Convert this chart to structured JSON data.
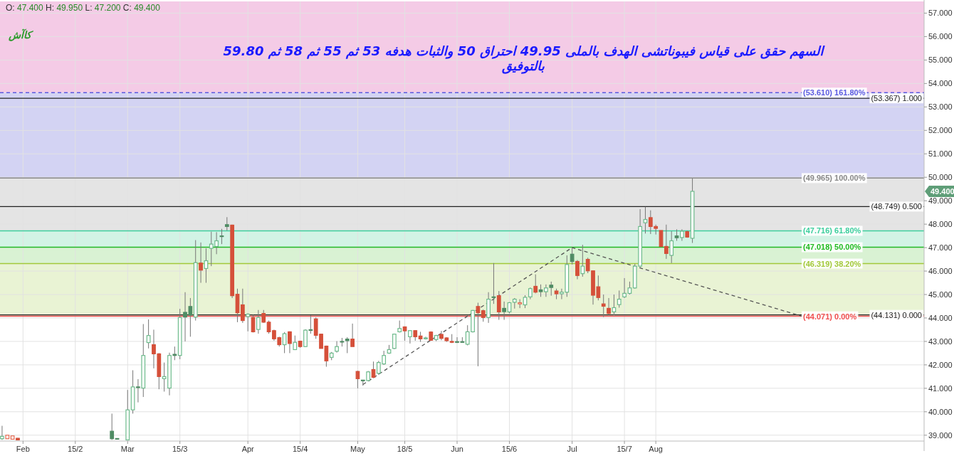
{
  "chart_data": {
    "type": "candlestick",
    "title": "O: 47.400  H: 49.950  L: 47.200  C: 49.400",
    "categories": [
      null,
      null,
      null,
      null,
      "Feb",
      null,
      null,
      null,
      null,
      null,
      null,
      null,
      null,
      null,
      "15/2",
      null,
      null,
      null,
      null,
      null,
      null,
      null,
      null,
      null,
      "Mar",
      null,
      null,
      null,
      null,
      null,
      null,
      null,
      null,
      null,
      "15/3",
      null,
      null,
      null,
      null,
      null,
      null,
      null,
      null,
      null,
      null,
      null,
      null,
      "Apr",
      null,
      null,
      null,
      null,
      null,
      null,
      null,
      null,
      null,
      "15/4",
      null,
      null,
      null,
      null,
      null,
      null,
      null,
      null,
      null,
      null,
      "May",
      null,
      null,
      null,
      null,
      null,
      null,
      null,
      null,
      "18/5",
      null,
      null,
      null,
      null,
      null,
      null,
      null,
      null,
      null,
      "Jun",
      null,
      null,
      null,
      null,
      null,
      null,
      null,
      null,
      null,
      "15/6",
      null,
      null,
      null,
      null,
      null,
      null,
      null,
      null,
      null,
      null,
      null,
      "Jul",
      null,
      null,
      null,
      null,
      null,
      null,
      null,
      null,
      null,
      "15/7",
      null,
      null,
      null,
      null,
      null,
      "Aug",
      null,
      null,
      null,
      null,
      null,
      null,
      null,
      null,
      null,
      null,
      null,
      null,
      null,
      null,
      null,
      null,
      null,
      null,
      null,
      null,
      null,
      null,
      null,
      null,
      null,
      null,
      null,
      null,
      null,
      null,
      null,
      null,
      null,
      null,
      null,
      null,
      null,
      null,
      null,
      null,
      null,
      null,
      null,
      null,
      null,
      null,
      null,
      null,
      null,
      null,
      null
    ],
    "ohlc": [
      [
        38.85,
        39.4,
        38.8,
        38.95
      ],
      [
        38.85,
        39.0,
        38.85,
        39.0
      ],
      [
        38.83,
        38.97,
        38.83,
        38.97
      ],
      [
        38.87,
        38.88,
        38.78,
        38.8
      ],
      null,
      null,
      null,
      null,
      null,
      null,
      null,
      null,
      null,
      null,
      null,
      null,
      null,
      null,
      null,
      null,
      null,
      [
        39.17,
        39.92,
        38.8,
        38.85
      ],
      [
        38.86,
        38.86,
        38.85,
        38.85
      ],
      null,
      [
        38.8,
        40.93,
        38.78,
        40.08
      ],
      [
        40.08,
        41.77,
        39.92,
        41.06
      ],
      [
        41.06,
        41.39,
        40.4,
        41.05
      ],
      [
        41.01,
        43.74,
        40.63,
        42.4
      ],
      [
        42.95,
        43.94,
        42.7,
        43.25
      ],
      [
        42.86,
        43.5,
        41.85,
        42.47
      ],
      [
        42.47,
        42.5,
        40.96,
        41.5
      ],
      [
        41.41,
        42.1,
        40.86,
        41.5
      ],
      [
        41.01,
        42.52,
        40.7,
        42.4
      ],
      [
        42.45,
        42.78,
        42.2,
        42.4
      ],
      [
        42.4,
        44.39,
        42.24,
        44.02
      ],
      [
        44.24,
        45.1,
        43.0,
        44.04
      ],
      [
        44.49,
        44.85,
        43.2,
        44.12
      ],
      [
        44.04,
        47.32,
        43.89,
        46.36
      ],
      [
        46.34,
        47.22,
        45.5,
        46.04
      ],
      [
        46.11,
        46.97,
        45.5,
        46.44
      ],
      [
        46.97,
        47.68,
        46.21,
        47.15
      ],
      [
        47.05,
        47.66,
        46.72,
        47.29
      ],
      [
        47.5,
        47.8,
        47.15,
        47.5
      ],
      [
        47.98,
        48.3,
        47.73,
        47.9
      ],
      [
        47.96,
        47.98,
        44.85,
        44.95
      ],
      [
        45.01,
        45.25,
        43.82,
        44.22
      ],
      [
        44.56,
        45.25,
        43.79,
        43.89
      ],
      [
        44.06,
        44.2,
        43.43,
        44.16
      ],
      [
        44.02,
        44.14,
        43.38,
        43.41
      ],
      [
        43.51,
        44.34,
        43.33,
        44.02
      ],
      [
        44.19,
        44.34,
        43.79,
        43.82
      ],
      [
        43.82,
        43.89,
        43.33,
        43.41
      ],
      [
        43.46,
        43.5,
        43.03,
        43.11
      ],
      [
        43.16,
        43.2,
        42.78,
        42.86
      ],
      [
        42.86,
        43.4,
        42.5,
        43.33
      ],
      [
        43.41,
        43.43,
        42.5,
        42.91
      ],
      [
        42.65,
        43.25,
        42.65,
        42.96
      ],
      [
        43.01,
        43.03,
        42.73,
        42.78
      ],
      [
        42.78,
        43.52,
        42.76,
        43.48
      ],
      [
        43.5,
        44.12,
        43.33,
        43.5
      ],
      [
        43.96,
        44.02,
        43.11,
        43.26
      ],
      [
        43.31,
        43.33,
        42.7,
        42.7
      ],
      [
        42.8,
        42.82,
        41.92,
        42.17
      ],
      [
        42.32,
        42.55,
        42.2,
        42.5
      ],
      [
        42.58,
        43.01,
        42.52,
        42.78
      ],
      [
        43.0,
        43.15,
        42.78,
        43.0
      ],
      [
        43.1,
        43.18,
        42.5,
        43.03
      ],
      [
        43.1,
        43.76,
        42.78,
        42.78
      ],
      [
        41.72,
        41.75,
        41.0,
        41.41
      ],
      [
        41.35,
        41.35,
        41.11,
        41.33
      ],
      [
        41.33,
        41.74,
        41.31,
        41.7
      ],
      [
        41.8,
        42.14,
        41.43,
        41.47
      ],
      [
        41.64,
        42.17,
        41.57,
        42.1
      ],
      [
        42.04,
        42.6,
        42.0,
        42.4
      ],
      [
        42.5,
        42.85,
        42.47,
        42.65
      ],
      [
        42.7,
        43.33,
        42.67,
        43.31
      ],
      [
        43.41,
        43.89,
        43.38,
        43.55
      ],
      [
        43.62,
        43.64,
        43.03,
        43.45
      ],
      [
        43.2,
        43.48,
        42.91,
        43.46
      ],
      [
        43.46,
        43.48,
        43.03,
        43.2
      ],
      [
        43.23,
        43.41,
        42.98,
        43.11
      ],
      [
        43.11,
        43.2,
        43.08,
        43.15
      ],
      [
        43.4,
        43.43,
        43.03,
        43.05
      ],
      [
        43.08,
        43.28,
        43.01,
        43.25
      ],
      [
        43.3,
        43.45,
        43.05,
        43.13
      ],
      [
        43.15,
        43.18,
        42.98,
        43.03
      ],
      [
        43.0,
        43.31,
        42.93,
        42.96
      ],
      [
        42.99,
        43.18,
        42.93,
        42.98
      ],
      [
        42.99,
        43.18,
        42.95,
        42.98
      ],
      [
        42.88,
        43.69,
        42.83,
        43.41
      ],
      [
        43.41,
        44.34,
        43.38,
        44.32
      ],
      [
        44.49,
        44.65,
        41.94,
        44.22
      ],
      [
        44.31,
        44.36,
        43.84,
        44.02
      ],
      [
        44.02,
        45.1,
        43.79,
        44.8
      ],
      [
        44.9,
        46.34,
        44.6,
        44.87
      ],
      [
        44.95,
        45.15,
        43.92,
        44.26
      ],
      [
        44.41,
        44.7,
        43.92,
        44.27
      ],
      [
        44.26,
        44.68,
        44.19,
        44.65
      ],
      [
        44.67,
        44.85,
        44.4,
        44.8
      ],
      [
        44.6,
        44.8,
        44.42,
        44.65
      ],
      [
        44.56,
        44.97,
        44.42,
        44.88
      ],
      [
        44.9,
        45.3,
        44.8,
        45.25
      ],
      [
        45.35,
        45.86,
        45.05,
        45.1
      ],
      [
        45.2,
        45.43,
        44.9,
        45.12
      ],
      [
        45.12,
        45.43,
        44.9,
        45.28
      ],
      [
        45.4,
        45.55,
        44.95,
        45.3
      ],
      [
        45.15,
        45.25,
        44.8,
        45.03
      ],
      [
        45.03,
        45.25,
        44.8,
        45.1
      ],
      [
        45.1,
        46.67,
        44.9,
        46.28
      ],
      [
        46.72,
        46.99,
        46.28,
        46.41
      ],
      [
        46.41,
        46.47,
        45.65,
        45.81
      ],
      [
        45.89,
        47.12,
        45.76,
        46.21
      ],
      [
        46.5,
        46.57,
        45.91,
        46.01
      ],
      [
        46.01,
        46.03,
        44.57,
        44.97
      ],
      [
        45.33,
        45.81,
        44.75,
        44.87
      ],
      [
        44.6,
        45.0,
        44.04,
        44.5
      ],
      [
        44.41,
        44.85,
        44.14,
        44.19
      ],
      [
        44.26,
        45.0,
        44.12,
        44.44
      ],
      [
        44.57,
        45.17,
        44.44,
        44.8
      ],
      [
        44.9,
        45.7,
        44.85,
        45.05
      ],
      [
        45.05,
        45.55,
        45.0,
        45.28
      ],
      [
        45.28,
        46.31,
        45.25,
        46.21
      ],
      [
        46.21,
        48.64,
        46.16,
        47.9
      ],
      [
        48.06,
        48.74,
        47.6,
        48.2
      ],
      [
        48.28,
        48.59,
        47.58,
        47.9
      ],
      [
        47.9,
        47.98,
        47.56,
        47.82
      ],
      [
        47.73,
        47.73,
        47.02,
        47.05
      ],
      [
        47.05,
        47.98,
        46.52,
        46.75
      ],
      [
        46.67,
        47.7,
        46.34,
        47.29
      ],
      [
        47.5,
        47.78,
        47.29,
        47.42
      ],
      [
        47.43,
        47.78,
        47.29,
        47.7
      ],
      [
        47.68,
        47.73,
        47.42,
        47.45
      ],
      [
        47.4,
        49.95,
        47.2,
        49.4
      ],
      null,
      null,
      null,
      null,
      null,
      null,
      null,
      null,
      null,
      null,
      null,
      null,
      null,
      null,
      null,
      null,
      null,
      null,
      null,
      null,
      null,
      null,
      null,
      null,
      null,
      null,
      null,
      null,
      null,
      null,
      null,
      null,
      null,
      null,
      null,
      null,
      null,
      null,
      null,
      null,
      null,
      null,
      null,
      null
    ],
    "colors": [
      "#6dbb8c",
      "#e46a52",
      "#e46a52",
      "#d5503a",
      null,
      null,
      null,
      null,
      null,
      null,
      null,
      null,
      null,
      null,
      null,
      null,
      null,
      null,
      null,
      null,
      null,
      "#4f8c64",
      "#4f8c64",
      null,
      "#6dbb8c",
      "#6dbb8c",
      "#4f8c64",
      "#6dbb8c",
      "#6dbb8c",
      "#d5503a",
      "#d5503a",
      "#6dbb8c",
      "#6dbb8c",
      "#4f8c64",
      "#6dbb8c",
      "#4f8c64",
      "#4f8c64",
      "#6dbb8c",
      "#d5503a",
      "#6dbb8c",
      "#6dbb8c",
      "#6dbb8c",
      "#4f8c64",
      "#4f8c64",
      "#d5503a",
      "#d5503a",
      "#d5503a",
      "#6dbb8c",
      "#d5503a",
      "#6dbb8c",
      "#d5503a",
      "#d5503a",
      "#d5503a",
      "#d5503a",
      "#6dbb8c",
      "#d5503a",
      "#6dbb8c",
      "#d5503a",
      "#6dbb8c",
      "#4f8c64",
      "#d5503a",
      "#d5503a",
      "#d5503a",
      "#6dbb8c",
      "#6dbb8c",
      "#4f8c64",
      "#4f8c64",
      "#d5503a",
      "#d5503a",
      "#4f8c64",
      "#6dbb8c",
      "#d5503a",
      "#6dbb8c",
      "#6dbb8c",
      "#6dbb8c",
      "#6dbb8c",
      "#6dbb8c",
      "#d5503a",
      "#6dbb8c",
      "#d5503a",
      "#d5503a",
      "#6dbb8c",
      "#d5503a",
      "#6dbb8c",
      "#d5503a",
      "#d5503a",
      "#d5503a",
      "#4f8c64",
      "#4f8c64",
      "#6dbb8c",
      "#6dbb8c",
      "#d5503a",
      "#d5503a",
      "#6dbb8c",
      "#4f8c64",
      "#d5503a",
      "#4f8c64",
      "#6dbb8c",
      "#6dbb8c",
      "#e46a52",
      "#6dbb8c",
      "#6dbb8c",
      "#d5503a",
      "#4f8c64",
      "#6dbb8c",
      "#4f8c64",
      "#d5503a",
      "#6dbb8c",
      "#6dbb8c",
      "#4f8c64",
      "#d5503a",
      "#6dbb8c",
      "#d5503a",
      "#d5503a",
      "#d5503a",
      "#d5503a",
      "#d5503a",
      "#6dbb8c",
      "#6dbb8c",
      "#6dbb8c",
      "#6dbb8c",
      "#6dbb8c",
      "#6dbb8c",
      "#6dbb8c",
      "#d5503a",
      "#d5503a",
      "#d5503a",
      "#d5503a",
      "#6dbb8c",
      "#4f8c64",
      "#6dbb8c",
      "#d5503a",
      "#6dbb8c",
      null,
      null,
      null,
      null,
      null,
      null,
      null,
      null,
      null,
      null,
      null,
      null,
      null,
      null,
      null,
      null,
      null,
      null,
      null,
      null,
      null,
      null,
      null,
      null,
      null,
      null,
      null,
      null,
      null,
      null,
      null,
      null,
      null,
      null,
      null,
      null,
      null,
      null,
      null,
      null,
      null,
      null,
      null,
      null
    ],
    "series": [
      {
        "type": "line",
        "color": "#555555",
        "line_style": "dashed",
        "values": [
          null,
          null,
          null,
          null,
          null,
          null,
          null,
          null,
          null,
          null,
          null,
          null,
          null,
          null,
          null,
          null,
          null,
          null,
          null,
          null,
          null,
          null,
          null,
          null,
          null,
          null,
          null,
          null,
          null,
          null,
          null,
          null,
          null,
          null,
          null,
          null,
          null,
          null,
          null,
          null,
          null,
          null,
          null,
          null,
          null,
          null,
          null,
          null,
          null,
          null,
          null,
          null,
          null,
          null,
          null,
          null,
          null,
          null,
          null,
          null,
          null,
          null,
          null,
          null,
          null,
          null,
          null,
          null,
          null,
          41.16,
          null,
          null,
          null,
          null,
          null,
          null,
          null,
          null,
          null,
          null,
          null,
          null,
          null,
          null,
          null,
          null,
          null,
          null,
          null,
          null,
          null,
          null,
          null,
          null,
          null,
          null,
          null,
          null,
          null,
          null,
          null,
          null,
          null,
          null,
          null,
          null,
          null,
          null,
          null,
          47.0,
          null,
          null,
          null,
          null,
          null,
          null,
          null,
          null,
          null,
          null,
          null,
          null,
          null,
          null,
          null,
          null,
          null,
          null,
          null,
          null,
          null,
          null,
          null,
          null,
          null,
          null,
          null,
          null,
          null,
          null,
          null,
          null,
          null,
          null,
          null,
          null,
          null,
          null,
          null,
          null,
          null,
          null,
          null,
          44.07,
          null,
          null,
          null,
          null,
          null,
          null,
          null,
          null,
          null,
          null,
          null,
          null,
          null,
          null,
          null,
          null,
          null,
          null,
          null,
          null,
          null,
          null,
          null
        ]
      }
    ],
    "ylim": [
      38.75,
      57.5
    ],
    "yticks": [
      {
        "value": 39,
        "label": "39.000"
      },
      {
        "value": 40,
        "label": "40.000"
      },
      {
        "value": 41,
        "label": "41.000"
      },
      {
        "value": 42,
        "label": "42.000"
      },
      {
        "value": 43,
        "label": "43.000"
      },
      {
        "value": 44,
        "label": "44.000"
      },
      {
        "value": 45,
        "label": "45.000"
      },
      {
        "value": 46,
        "label": "46.000"
      },
      {
        "value": 47,
        "label": "47.000"
      },
      {
        "value": 48,
        "label": "48.000"
      },
      {
        "value": 49,
        "label": "49.000"
      },
      {
        "value": 50,
        "label": "50.000"
      },
      {
        "value": 51,
        "label": "51.000"
      },
      {
        "value": 52,
        "label": "52.000"
      },
      {
        "value": 53,
        "label": "53.000"
      },
      {
        "value": 54,
        "label": "54.000"
      },
      {
        "value": 55,
        "label": "55.000"
      },
      {
        "value": 56,
        "label": "56.000"
      },
      {
        "value": 57,
        "label": "57.000"
      }
    ],
    "grid": true,
    "bands": [
      {
        "axis": "y",
        "from": 53.61,
        "to": 57.5,
        "color": "#f4cbe6"
      },
      {
        "axis": "y",
        "from": 49.965,
        "to": 53.61,
        "color": "#d3d3f3"
      },
      {
        "axis": "y",
        "from": 47.716,
        "to": 49.965,
        "color": "#e4e4e4"
      },
      {
        "axis": "y",
        "from": 47.018,
        "to": 47.716,
        "color": "#d2f3e5"
      },
      {
        "axis": "y",
        "from": 46.319,
        "to": 47.018,
        "color": "#d9f2d3"
      },
      {
        "axis": "y",
        "from": 44.071,
        "to": 46.319,
        "color": "#e9f3d4"
      }
    ],
    "ref_lines": [
      {
        "axis": "y",
        "value": 53.367,
        "label": "(53.367) 1.000",
        "color": "#222222"
      },
      {
        "axis": "y",
        "value": 48.749,
        "label": "(48.749) 0.500",
        "color": "#222222"
      },
      {
        "axis": "y",
        "value": 44.131,
        "label": "(44.131) 0.000",
        "color": "#222222"
      },
      {
        "axis": "y",
        "value": 53.61,
        "label": "(53.610) 161.80%",
        "color": "#5b5be0",
        "line_style": "dashed"
      },
      {
        "axis": "y",
        "value": 49.965,
        "label": "(49.965) 100.00%",
        "color": "#8a8a8a"
      },
      {
        "axis": "y",
        "value": 47.716,
        "label": "(47.716) 61.80%",
        "color": "#3ecf9e"
      },
      {
        "axis": "y",
        "value": 47.018,
        "label": "(47.018) 50.00%",
        "color": "#22bb22"
      },
      {
        "axis": "y",
        "value": 46.319,
        "label": "(46.319) 38.20%",
        "color": "#a3c93a"
      },
      {
        "axis": "y",
        "value": 44.071,
        "label": "(44.071) 0.00%",
        "color": "#f05050"
      }
    ],
    "annotations": [
      "كاآش",
      "السهم حقق على قياس فيبوناتشى الهدف بالملى 49.95 احتراق 50 والثبات هدفه 53 ثم 55 ثم 58 ثم 59.80\nبالتوفيق",
      "49.400"
    ]
  }
}
